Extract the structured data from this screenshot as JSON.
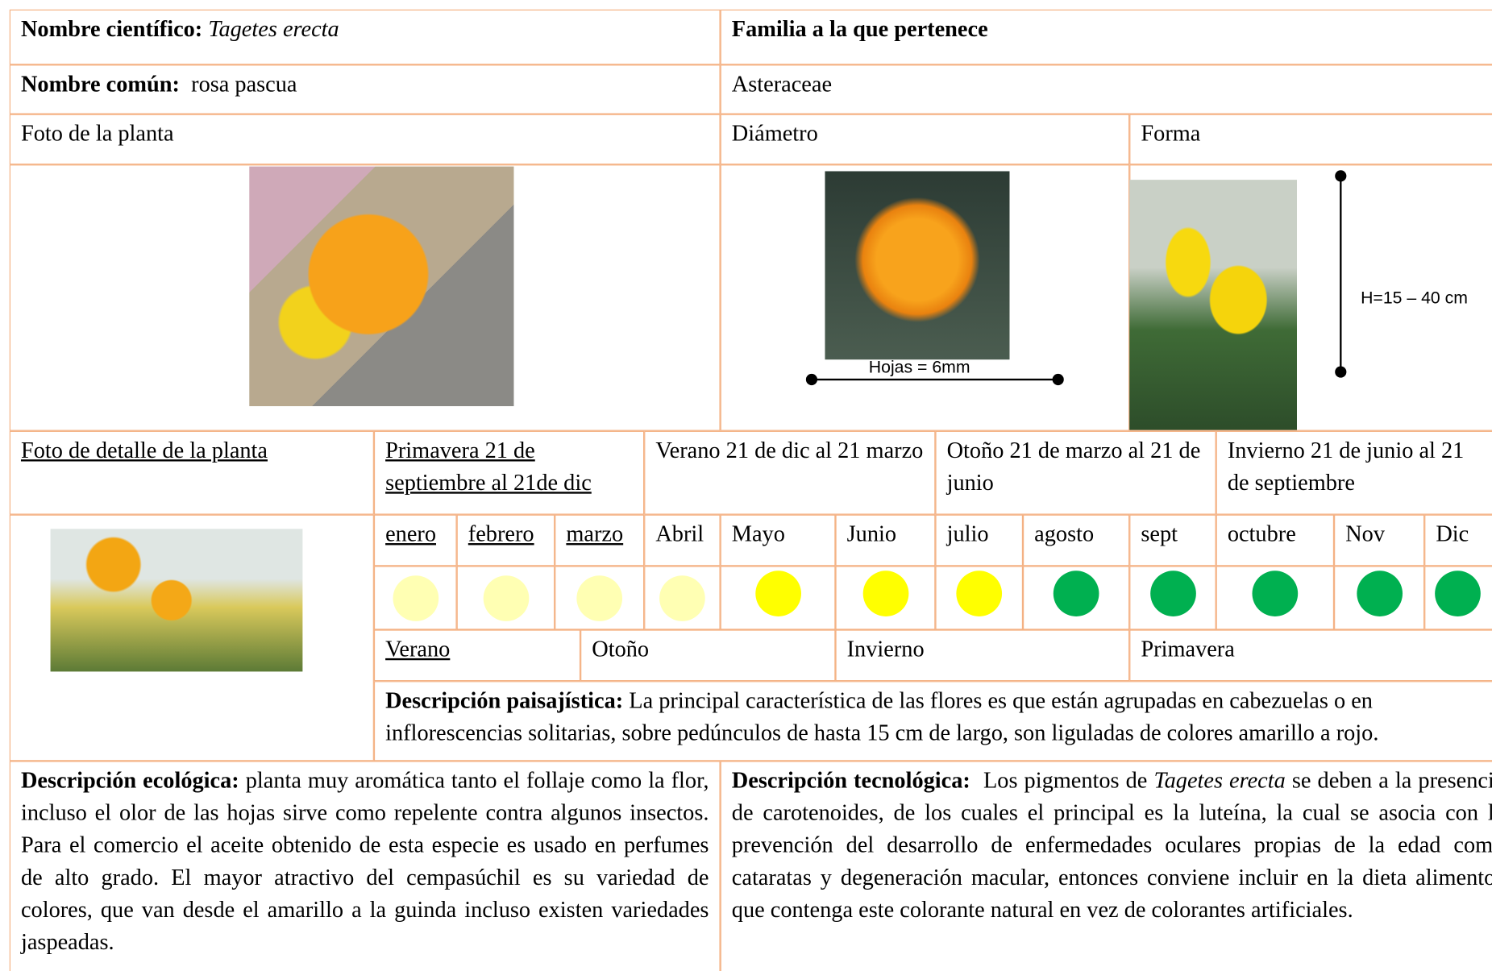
{
  "header": {
    "scientific_label": "Nombre científico:",
    "scientific_name": "Tagetes erecta",
    "family_label": "Familia a la que pertenece",
    "common_label": "Nombre común:",
    "common_name": "rosa pascua",
    "family": "Asteraceae"
  },
  "photos": {
    "plant": "Foto de la planta",
    "diameter": "Diámetro",
    "shape": "Forma",
    "leaves": "Hojas = 6mm",
    "height": "H=15 – 40 cm",
    "detail": "Foto de detalle de la planta"
  },
  "seasons": [
    "Primavera 21 de septiembre al 21de dic",
    "Verano 21 de dic al 21 marzo",
    "Otoño 21 de marzo al 21 de junio",
    "Invierno 21 de junio al 21 de septiembre"
  ],
  "months": [
    "enero",
    "febrero",
    "marzo",
    "Abril",
    "Mayo",
    "Junio",
    "julio",
    "agosto",
    "sept",
    "octubre",
    "Nov",
    "Dic"
  ],
  "month_colors": [
    "#ffffb3",
    "#ffffb3",
    "#ffffb3",
    "#ffffb3",
    "#ffff00",
    "#ffff00",
    "#ffff00",
    "#00b050",
    "#00b050",
    "#00b050",
    "#00b050",
    "#00b050"
  ],
  "season_bands": [
    "Verano",
    "Otoño",
    "Invierno",
    "Primavera"
  ],
  "descriptions": {
    "landscape_label": "Descripción paisajística:",
    "landscape": "La principal característica de las flores es que están agrupadas en cabezuelas o en inflorescencias solitarias, sobre pedúnculos de hasta 15 cm de largo, son liguladas de colores amarillo a rojo.",
    "ecological_label": "Descripción ecológica:",
    "ecological": "planta muy aromática tanto el follaje como la flor, incluso el olor de las hojas sirve como repelente contra algunos insectos. Para el comercio el aceite obtenido de esta especie es usado en perfumes de alto grado. El mayor atractivo del cempasúchil es su variedad de colores, que van desde el amarillo a la guinda incluso existen variedades jaspeadas.",
    "technological_label": "Descripción tecnológica:",
    "technological_pre": "Los pigmentos de",
    "technological_name": "Tagetes erecta",
    "technological_post": "se deben a la presencia de carotenoides, de los cuales el principal es la luteína, la cual se asocia con la prevención del desarrollo de enfermedades oculares propias de la edad como cataratas y degeneración macular, entonces conviene incluir en la dieta alimentos que contenga este colorante natural en vez de colorantes artificiales."
  }
}
